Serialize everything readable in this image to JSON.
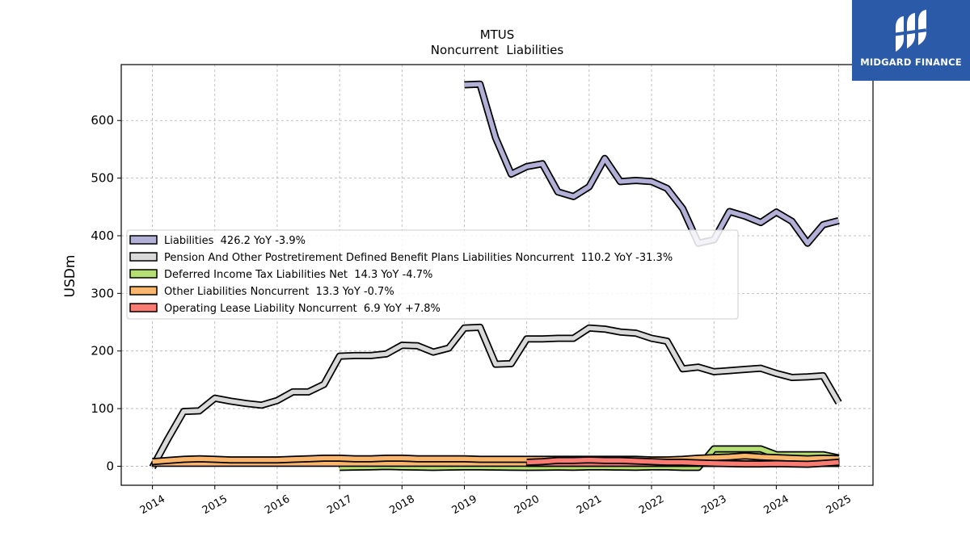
{
  "brand": {
    "name": "MIDGARD FINANCE",
    "color": "#2b5aa8"
  },
  "chart_data": {
    "type": "line",
    "title": "MTUS",
    "subtitle": "Noncurrent  Liabilities",
    "xlabel": "",
    "ylabel": "USDm",
    "xlim": [
      2013.5,
      2025.55
    ],
    "ylim": [
      -33,
      697
    ],
    "xticks": [
      2014,
      2015,
      2016,
      2017,
      2018,
      2019,
      2020,
      2021,
      2022,
      2023,
      2024,
      2025
    ],
    "yticks": [
      0,
      100,
      200,
      300,
      400,
      500,
      600
    ],
    "grid": true,
    "legend_position": "center-left",
    "series": [
      {
        "name": "Liabilities",
        "legend_label": "Liabilities  426.2 YoY -3.9%",
        "color": "#b3b0d8",
        "x": [
          2019.0,
          2019.25,
          2019.5,
          2019.75,
          2020.0,
          2020.25,
          2020.5,
          2020.75,
          2021.0,
          2021.25,
          2021.5,
          2021.75,
          2022.0,
          2022.25,
          2022.5,
          2022.75,
          2023.0,
          2023.25,
          2023.5,
          2023.75,
          2024.0,
          2024.25,
          2024.5,
          2024.75,
          2025.0
        ],
        "y": [
          662,
          663,
          570,
          507,
          520,
          525,
          476,
          468,
          485,
          534,
          494,
          496,
          494,
          482,
          447,
          387,
          393,
          442,
          434,
          423,
          441,
          425,
          387,
          419,
          426.2
        ]
      },
      {
        "name": "Pension And Other Postretirement Defined Benefit Plans Liabilities Noncurrent",
        "legend_label": "Pension And Other Postretirement Defined Benefit Plans Liabilities Noncurrent  110.2 YoY -31.3%",
        "color": "#d9d9d9",
        "x": [
          2014.0,
          2014.25,
          2014.5,
          2014.75,
          2015.0,
          2015.25,
          2015.5,
          2015.75,
          2016.0,
          2016.25,
          2016.5,
          2016.75,
          2017.0,
          2017.25,
          2017.5,
          2017.75,
          2018.0,
          2018.25,
          2018.5,
          2018.75,
          2019.0,
          2019.25,
          2019.5,
          2019.75,
          2020.0,
          2020.25,
          2020.5,
          2020.75,
          2021.0,
          2021.25,
          2021.5,
          2021.75,
          2022.0,
          2022.25,
          2022.5,
          2022.75,
          2023.0,
          2023.25,
          2023.5,
          2023.75,
          2024.0,
          2024.25,
          2024.5,
          2024.75,
          2025.0
        ],
        "y": [
          -2,
          48,
          95,
          96,
          118,
          113,
          109,
          106,
          114,
          129,
          129,
          142,
          191,
          192,
          192,
          195,
          210,
          209,
          198,
          205,
          240,
          241,
          177,
          178,
          221,
          221,
          222,
          222,
          240,
          238,
          233,
          231,
          222,
          217,
          169,
          172,
          164,
          166,
          168,
          170,
          161,
          154,
          155,
          157,
          110.2
        ]
      },
      {
        "name": "Deferred Income Tax Liabilities Net",
        "legend_label": "Deferred Income Tax Liabilities Net  14.3 YoY -4.7%",
        "color": "#b5df71",
        "fill": true,
        "x": [
          2017.0,
          2017.25,
          2017.5,
          2017.75,
          2018.0,
          2018.25,
          2018.5,
          2018.75,
          2019.0,
          2019.25,
          2019.5,
          2019.75,
          2020.0,
          2020.25,
          2020.5,
          2020.75,
          2021.0,
          2021.25,
          2021.5,
          2021.75,
          2022.0,
          2022.25,
          2022.5,
          2022.75,
          2023.0,
          2023.25,
          2023.5,
          2023.75,
          2024.0,
          2024.25,
          2024.5,
          2024.75,
          2025.0
        ],
        "y": [
          -2,
          -1.5,
          -1,
          -0.5,
          -1,
          -1.5,
          -2,
          -1.5,
          -1,
          -1.2,
          -1.5,
          -1.8,
          -2,
          -1.8,
          -1.5,
          -1.8,
          -1,
          -1.2,
          -1.5,
          -1.8,
          -1,
          -1.2,
          -2,
          -2,
          30,
          30,
          30,
          30,
          20,
          20,
          20,
          20,
          14.3
        ]
      },
      {
        "name": "Other Liabilities Noncurrent",
        "legend_label": "Other Liabilities Noncurrent  13.3 YoY -0.7%",
        "color": "#f9b56b",
        "fill": true,
        "x": [
          2014.0,
          2014.25,
          2014.5,
          2014.75,
          2015.0,
          2015.25,
          2015.5,
          2015.75,
          2016.0,
          2016.25,
          2016.5,
          2016.75,
          2017.0,
          2017.25,
          2017.5,
          2017.75,
          2018.0,
          2018.25,
          2018.5,
          2018.75,
          2019.0,
          2019.25,
          2019.5,
          2019.75,
          2020.0,
          2020.25,
          2020.5,
          2020.75,
          2021.0,
          2021.25,
          2021.5,
          2021.75,
          2022.0,
          2022.25,
          2022.5,
          2022.75,
          2023.0,
          2023.25,
          2023.5,
          2023.75,
          2024.0,
          2024.25,
          2024.5,
          2024.75,
          2025.0
        ],
        "y": [
          8,
          10,
          12,
          13,
          12,
          11,
          11,
          11,
          11,
          12,
          13,
          14,
          14,
          13,
          13,
          14,
          14,
          13,
          13,
          13,
          13,
          12,
          12,
          12,
          12,
          12,
          12,
          12,
          12,
          12,
          12,
          12,
          11,
          11,
          12,
          14,
          15,
          16,
          18,
          16,
          15,
          14,
          13,
          14,
          13.3
        ]
      },
      {
        "name": "Operating Lease Liability Noncurrent",
        "legend_label": "Operating Lease Liability Noncurrent  6.9 YoY +7.8%",
        "color": "#f97b72",
        "fill": true,
        "x": [
          2020.0,
          2020.25,
          2020.5,
          2020.75,
          2021.0,
          2021.25,
          2021.5,
          2021.75,
          2022.0,
          2022.25,
          2022.5,
          2022.75,
          2023.0,
          2023.25,
          2023.5,
          2023.75,
          2024.0,
          2024.25,
          2024.5,
          2024.75,
          2025.0
        ],
        "y": [
          7,
          8,
          10,
          10,
          11,
          10,
          10,
          9,
          8,
          7,
          7,
          6,
          5,
          4.5,
          4,
          4,
          4.5,
          4,
          3.5,
          5,
          6.9
        ]
      }
    ]
  }
}
